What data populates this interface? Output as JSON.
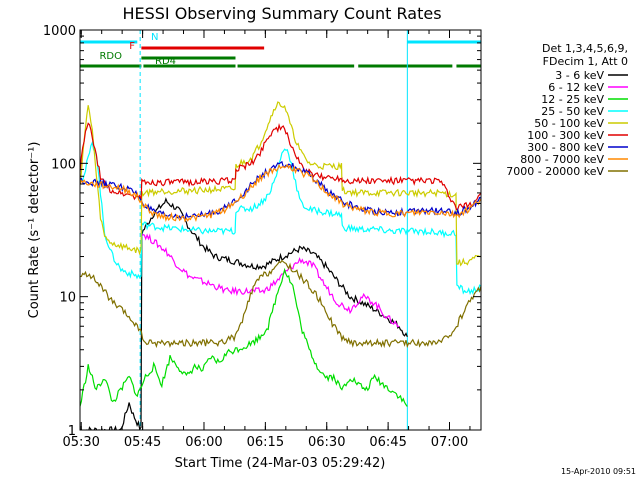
{
  "chart_data": {
    "type": "line",
    "title": "HESSI Observing Summary Count Rates",
    "xlabel": "Start Time (24-Mar-03 05:29:42)",
    "ylabel": "Count Rate (s⁻¹ detector⁻¹)",
    "yscale": "log",
    "ylim": [
      1,
      1000
    ],
    "xlim_minutes": [
      0,
      98
    ],
    "x_tick_labels": [
      "05:30",
      "05:45",
      "06:00",
      "06:15",
      "06:30",
      "06:45",
      "07:00"
    ],
    "y_tick_labels": [
      "1",
      "10",
      "100",
      "1000"
    ],
    "footer": "15-Apr-2010 09:51",
    "legend_header": [
      "Det 1,3,4,5,6,9,",
      "FDecim 1, Att 0"
    ],
    "flags": [
      {
        "label": "N",
        "color": "#00e5ff",
        "segments": [
          [
            0,
            14
          ],
          [
            80,
            98
          ]
        ]
      },
      {
        "label": "F",
        "color": "#e00000",
        "segments": [
          [
            15,
            45
          ]
        ]
      },
      {
        "label": "RDO",
        "color": "#007a00",
        "segments": [
          [
            15,
            38
          ]
        ]
      },
      {
        "label": "RD4",
        "color": "#007a00",
        "segments": [
          [
            0,
            15
          ],
          [
            15.5,
            38
          ],
          [
            38.5,
            67
          ],
          [
            68,
            91
          ],
          [
            92,
            98
          ]
        ]
      }
    ],
    "series": [
      {
        "name": "3 - 6 keV",
        "color": "#000000",
        "x": [
          0,
          2,
          4,
          6,
          8,
          10,
          12,
          13,
          14.9,
          15.1,
          18,
          21,
          24,
          27,
          30,
          33,
          36,
          39,
          42,
          45,
          48,
          51,
          54,
          57,
          60,
          63,
          66,
          69,
          72,
          75,
          78,
          80
        ],
        "y": [
          1,
          1,
          1,
          1,
          1,
          1,
          1.6,
          1.3,
          1,
          30,
          42,
          52,
          45,
          32,
          24,
          20,
          19,
          18,
          17,
          17,
          19,
          21,
          23,
          21,
          17,
          13,
          10,
          9,
          8,
          7,
          6,
          5
        ]
      },
      {
        "name": "6 - 12 keV",
        "color": "#ff00ff",
        "x": [
          15.1,
          18,
          21,
          24,
          27,
          30,
          33,
          36,
          39,
          42,
          45,
          48,
          51,
          54,
          57,
          60,
          63,
          66,
          69,
          72,
          75,
          78
        ],
        "y": [
          30,
          26,
          22,
          17,
          14,
          13,
          12,
          11,
          11,
          11,
          11,
          13,
          16,
          19,
          17,
          12,
          9,
          8,
          10,
          9,
          7,
          6
        ]
      },
      {
        "name": "12 - 25 keV",
        "color": "#00dd00",
        "x": [
          0,
          2,
          4,
          6,
          8,
          10,
          12,
          14,
          16,
          18,
          20,
          22,
          24,
          26,
          28,
          30,
          32,
          34,
          36,
          38,
          40,
          42,
          44,
          46,
          48,
          50,
          52,
          54,
          56,
          58,
          60,
          62,
          64,
          66,
          68,
          70,
          72,
          74,
          76,
          78,
          80
        ],
        "y": [
          1.5,
          3,
          2,
          2.5,
          1.6,
          2,
          2.5,
          1.8,
          2.5,
          3,
          2.2,
          3.5,
          3,
          2.5,
          3,
          2.8,
          3.5,
          3.2,
          3.8,
          4,
          4.2,
          4.5,
          5,
          6,
          10,
          16,
          12,
          6,
          4,
          3,
          2.5,
          2.5,
          2,
          2.5,
          2.2,
          2,
          2.5,
          2.2,
          2,
          1.8,
          1.5
        ]
      },
      {
        "name": "25 - 50 keV",
        "color": "#00ffff",
        "x": [
          0,
          1,
          2,
          3,
          4,
          5,
          6,
          8,
          10,
          12,
          14.9,
          15.1,
          20,
          25,
          30,
          35,
          37.9,
          38.1,
          42,
          44,
          46,
          48,
          49,
          50,
          51,
          52,
          53,
          54,
          56,
          58,
          60,
          62,
          63.9,
          64.1,
          68,
          72,
          76,
          80,
          84,
          88,
          91.9,
          92.1,
          94,
          96,
          98
        ],
        "y": [
          75,
          80,
          110,
          140,
          120,
          60,
          30,
          20,
          16,
          15,
          14,
          35,
          33,
          32,
          31,
          31,
          31,
          45,
          46,
          50,
          58,
          80,
          110,
          130,
          120,
          90,
          65,
          50,
          45,
          44,
          43,
          42,
          41,
          33,
          32,
          32,
          31,
          31,
          31,
          30,
          30,
          12,
          11,
          11,
          12
        ]
      },
      {
        "name": "50 - 100 keV",
        "color": "#cccc00",
        "x": [
          0,
          1,
          2,
          3,
          4,
          5,
          6,
          8,
          10,
          12,
          14.9,
          15.1,
          20,
          25,
          30,
          35,
          37.9,
          38.1,
          42,
          44,
          46,
          48,
          50,
          52,
          54,
          56,
          58,
          60,
          62,
          63.9,
          64.1,
          68,
          72,
          76,
          80,
          84,
          88,
          91.9,
          92.1,
          94,
          96,
          98
        ],
        "y": [
          70,
          150,
          270,
          180,
          80,
          40,
          28,
          25,
          24,
          23,
          22,
          60,
          62,
          62,
          63,
          64,
          64,
          96,
          110,
          140,
          200,
          280,
          270,
          170,
          120,
          100,
          96,
          95,
          95,
          95,
          62,
          60,
          60,
          60,
          60,
          60,
          60,
          58,
          18,
          18,
          19,
          20
        ]
      },
      {
        "name": "100 - 300 keV",
        "color": "#e00000",
        "x": [
          0,
          1,
          2,
          3,
          4,
          5,
          6,
          7,
          8,
          10,
          12,
          14.9,
          15.1,
          20,
          25,
          30,
          35,
          37.9,
          38.1,
          42,
          44,
          46,
          48,
          50,
          52,
          54,
          56,
          58,
          60,
          62,
          63.9,
          64.1,
          68,
          72,
          76,
          80,
          84,
          88,
          92,
          96,
          98
        ],
        "y": [
          90,
          150,
          200,
          160,
          110,
          80,
          70,
          65,
          62,
          60,
          58,
          55,
          72,
          72,
          72,
          73,
          74,
          74,
          90,
          100,
          120,
          160,
          185,
          180,
          130,
          95,
          85,
          80,
          79,
          78,
          78,
          75,
          74,
          74,
          74,
          74,
          74,
          74,
          46,
          50,
          60
        ]
      },
      {
        "name": "300 - 800 keV",
        "color": "#0000cc",
        "x": [
          0,
          3,
          6,
          9,
          12,
          14,
          16,
          18,
          20,
          24,
          28,
          32,
          36,
          40,
          44,
          48,
          50,
          52,
          56,
          60,
          64,
          68,
          72,
          76,
          80,
          84,
          88,
          92,
          95,
          98
        ],
        "y": [
          75,
          72,
          70,
          68,
          64,
          58,
          48,
          43,
          41,
          40,
          40,
          42,
          47,
          60,
          80,
          95,
          98,
          95,
          82,
          64,
          52,
          46,
          44,
          43,
          43,
          44,
          44,
          42,
          46,
          55
        ]
      },
      {
        "name": "800 - 7000 keV",
        "color": "#ff8800",
        "x": [
          0,
          3,
          6,
          9,
          12,
          14,
          16,
          18,
          20,
          24,
          28,
          32,
          36,
          40,
          44,
          48,
          50,
          52,
          56,
          60,
          64,
          68,
          72,
          76,
          80,
          84,
          88,
          92,
          95,
          98
        ],
        "y": [
          73,
          70,
          68,
          66,
          62,
          56,
          47,
          42,
          40,
          39,
          39,
          41,
          46,
          58,
          78,
          92,
          95,
          92,
          80,
          62,
          50,
          45,
          43,
          42,
          42,
          43,
          43,
          41,
          45,
          54
        ]
      },
      {
        "name": "7000 - 20000 keV",
        "color": "#807000",
        "x": [
          0,
          2,
          4,
          6,
          8,
          10,
          12,
          14,
          16,
          18,
          22,
          26,
          30,
          34,
          38,
          40,
          42,
          44,
          46,
          48,
          50,
          52,
          54,
          56,
          58,
          60,
          62,
          64,
          66,
          68,
          72,
          76,
          80,
          84,
          88,
          90,
          92,
          94,
          96,
          98
        ],
        "y": [
          14,
          15,
          13,
          11,
          9,
          8,
          7,
          6,
          4.5,
          4.5,
          4.5,
          4.5,
          4.5,
          4.5,
          5,
          7,
          11,
          14,
          15,
          17,
          18,
          16,
          14,
          12,
          10,
          8,
          6,
          5,
          4.5,
          4.5,
          4.5,
          4.5,
          4.5,
          4.5,
          4.5,
          5,
          6,
          8,
          10,
          12
        ]
      }
    ]
  }
}
